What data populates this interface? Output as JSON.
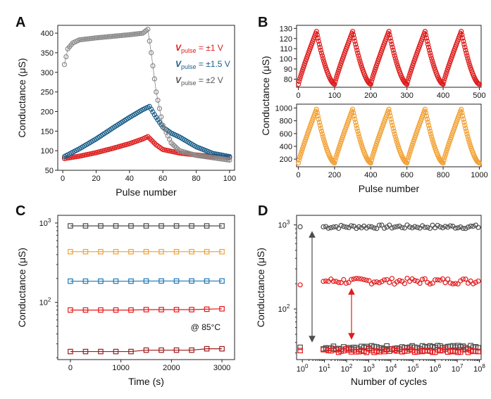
{
  "chart_data": [
    {
      "panel": "A",
      "type": "scatter",
      "xlabel": "Pulse number",
      "ylabel": "Conductance (μS)",
      "xlim": [
        -3,
        103
      ],
      "ylim": [
        50,
        420
      ],
      "xticks": [
        0,
        20,
        40,
        60,
        80,
        100
      ],
      "yticks": [
        50,
        100,
        150,
        200,
        250,
        300,
        350,
        400
      ],
      "legend": [
        {
          "prefix": "V",
          "sub": "pulse",
          "suffix": " = ±1 V",
          "color": "#dd1c1c"
        },
        {
          "prefix": "V",
          "sub": "pulse",
          "suffix": " = ±1.5 V",
          "color": "#1b5f8a"
        },
        {
          "prefix": "V",
          "sub": "pulse",
          "suffix": " = ±2 V",
          "color": "#555555"
        }
      ],
      "series": [
        {
          "color": "#dd1c1c",
          "points": [
            [
              1,
              80
            ],
            [
              10,
              86
            ],
            [
              20,
              95
            ],
            [
              30,
              106
            ],
            [
              40,
              118
            ],
            [
              48,
              130
            ],
            [
              51,
              136
            ],
            [
              56,
              115
            ],
            [
              60,
              103
            ],
            [
              70,
              94
            ],
            [
              80,
              89
            ],
            [
              90,
              85
            ],
            [
              100,
              83
            ]
          ]
        },
        {
          "color": "#1b5f8a",
          "points": [
            [
              1,
              85
            ],
            [
              10,
              105
            ],
            [
              20,
              130
            ],
            [
              30,
              158
            ],
            [
              40,
              185
            ],
            [
              48,
              205
            ],
            [
              52,
              213
            ],
            [
              56,
              185
            ],
            [
              60,
              160
            ],
            [
              65,
              145
            ],
            [
              70,
              135
            ],
            [
              80,
              110
            ],
            [
              90,
              93
            ],
            [
              100,
              85
            ]
          ]
        },
        {
          "color": "#8a8a8a",
          "points": [
            [
              1,
              320
            ],
            [
              3,
              360
            ],
            [
              6,
              375
            ],
            [
              10,
              383
            ],
            [
              20,
              388
            ],
            [
              30,
              392
            ],
            [
              40,
              396
            ],
            [
              48,
              400
            ],
            [
              51,
              410
            ],
            [
              53,
              350
            ],
            [
              56,
              250
            ],
            [
              60,
              165
            ],
            [
              65,
              120
            ],
            [
              70,
              100
            ],
            [
              80,
              88
            ],
            [
              90,
              82
            ],
            [
              100,
              76
            ]
          ]
        }
      ]
    },
    {
      "panel": "B-top",
      "type": "scatter",
      "xlabel": "",
      "ylabel": "",
      "xlim": [
        -5,
        505
      ],
      "ylim": [
        72,
        133
      ],
      "xticks": [
        0,
        100,
        200,
        300,
        400,
        500
      ],
      "yticks": [
        80,
        90,
        100,
        110,
        120,
        130
      ],
      "color": "#dd1c1c",
      "cycles": 5,
      "period": 100,
      "min": 75,
      "max": 127
    },
    {
      "panel": "B-bottom",
      "type": "scatter",
      "xlabel": "Pulse number",
      "ylabel": "",
      "xlim": [
        -10,
        1010
      ],
      "ylim": [
        80,
        1060
      ],
      "xticks": [
        0,
        200,
        400,
        600,
        800,
        1000
      ],
      "yticks": [
        200,
        400,
        600,
        800,
        1000
      ],
      "color": "#f2a134",
      "cycles": 5,
      "period": 200,
      "min": 140,
      "max": 980
    },
    {
      "panel_ab_shared_ylabel": "Conductance (μS)"
    },
    {
      "panel": "C",
      "type": "line",
      "xlabel": "Time (s)",
      "ylabel": "Conductance (μS)",
      "yscale": "log",
      "xlim": [
        -250,
        3250
      ],
      "ylim": [
        19,
        1250
      ],
      "xticks": [
        0,
        1000,
        2000,
        3000
      ],
      "yticks": [
        100,
        1000
      ],
      "x": [
        0,
        300,
        600,
        900,
        1200,
        1500,
        1800,
        2100,
        2400,
        2700,
        3000
      ],
      "series": [
        {
          "color": "#4d4d4d",
          "values": [
            920,
            920,
            920,
            920,
            920,
            920,
            920,
            920,
            920,
            920,
            920
          ]
        },
        {
          "color": "#f2a134",
          "values": [
            435,
            435,
            435,
            435,
            435,
            435,
            435,
            435,
            435,
            435,
            435
          ]
        },
        {
          "color": "#1f78b4",
          "values": [
            185,
            185,
            185,
            185,
            185,
            186,
            186,
            186,
            186,
            186,
            186
          ]
        },
        {
          "color": "#e31a1c",
          "values": [
            80,
            80,
            80,
            80,
            80,
            81,
            81,
            81,
            81,
            82,
            83
          ]
        },
        {
          "color": "#9e1c1c",
          "values": [
            24,
            24,
            24,
            24,
            24,
            25,
            25,
            25,
            25,
            26,
            26
          ]
        }
      ],
      "annotation": "@ 85°C"
    },
    {
      "panel": "D",
      "type": "scatter",
      "xlabel": "Number of cycles",
      "ylabel": "Conductance (μS)",
      "xscale": "log",
      "yscale": "log",
      "xlim": [
        0.55,
        120000000
      ],
      "ylim": [
        25,
        1300
      ],
      "xticks": [
        1,
        10,
        100,
        1000,
        10000,
        100000,
        1000000,
        10000000,
        100000000
      ],
      "xtick_labels": [
        [
          "10",
          "0"
        ],
        [
          "10",
          "1"
        ],
        [
          "10",
          "2"
        ],
        [
          "10",
          "3"
        ],
        [
          "10",
          "4"
        ],
        [
          "10",
          "5"
        ],
        [
          "10",
          "6"
        ],
        [
          "10",
          "7"
        ],
        [
          "10",
          "8"
        ]
      ],
      "yticks": [
        100,
        1000
      ],
      "series": [
        {
          "name": "",
          "marker": "circle",
          "color": "#4d4d4d",
          "level": 950
        },
        {
          "name": "",
          "marker": "circle",
          "color": "#e31a1c",
          "level": 215
        },
        {
          "name": "",
          "marker": "square",
          "color": "#4d4d4d",
          "level": 35
        },
        {
          "name": "",
          "marker": "square",
          "color": "#e31a1c",
          "level": 32
        }
      ]
    }
  ],
  "panel_labels": [
    "A",
    "B",
    "C",
    "D"
  ],
  "tick_labels_y_log": [
    [
      "10",
      "2"
    ],
    [
      "10",
      "3"
    ]
  ]
}
